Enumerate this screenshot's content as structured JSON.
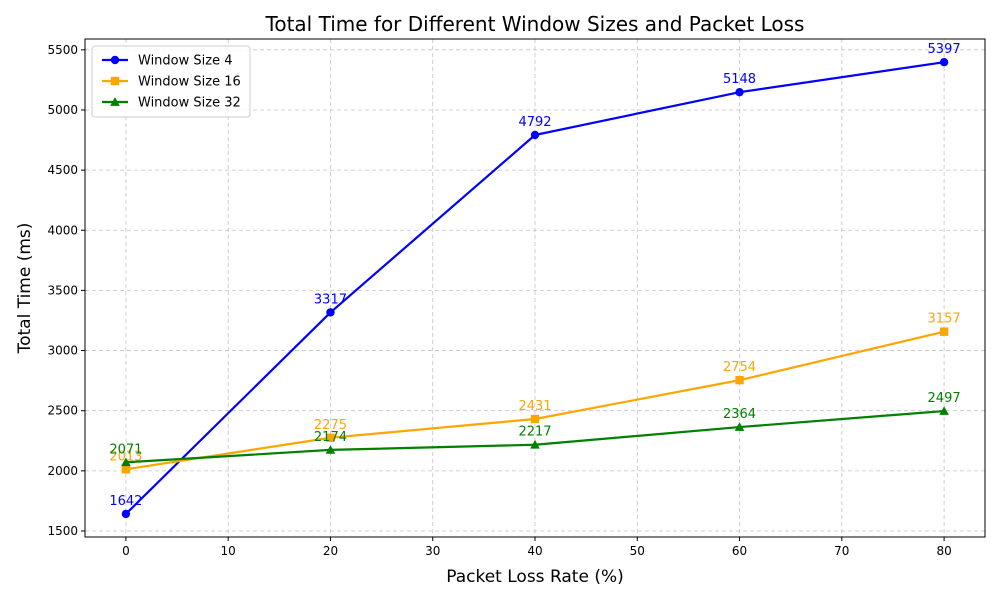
{
  "chart_data": {
    "type": "line",
    "title": "Total Time for Different Window Sizes and Packet Loss",
    "xlabel": "Packet Loss Rate (%)",
    "ylabel": "Total Time (ms)",
    "x": [
      0,
      20,
      40,
      60,
      80
    ],
    "xlim": [
      -4,
      84
    ],
    "ylim": [
      1450,
      5590
    ],
    "xticks": [
      0,
      10,
      20,
      30,
      40,
      50,
      60,
      70,
      80
    ],
    "yticks": [
      1500,
      2000,
      2500,
      3000,
      3500,
      4000,
      4500,
      5000,
      5500
    ],
    "grid": true,
    "legend_position": "top-left",
    "series": [
      {
        "name": "Window Size 4",
        "values": [
          1642,
          3317,
          4792,
          5148,
          5397
        ],
        "color": "#0000ff",
        "marker": "circle"
      },
      {
        "name": "Window Size 16",
        "values": [
          2013,
          2275,
          2431,
          2754,
          3157
        ],
        "color": "#ffa500",
        "marker": "square"
      },
      {
        "name": "Window Size 32",
        "values": [
          2071,
          2174,
          2217,
          2364,
          2497
        ],
        "color": "#008000",
        "marker": "triangle"
      }
    ]
  }
}
